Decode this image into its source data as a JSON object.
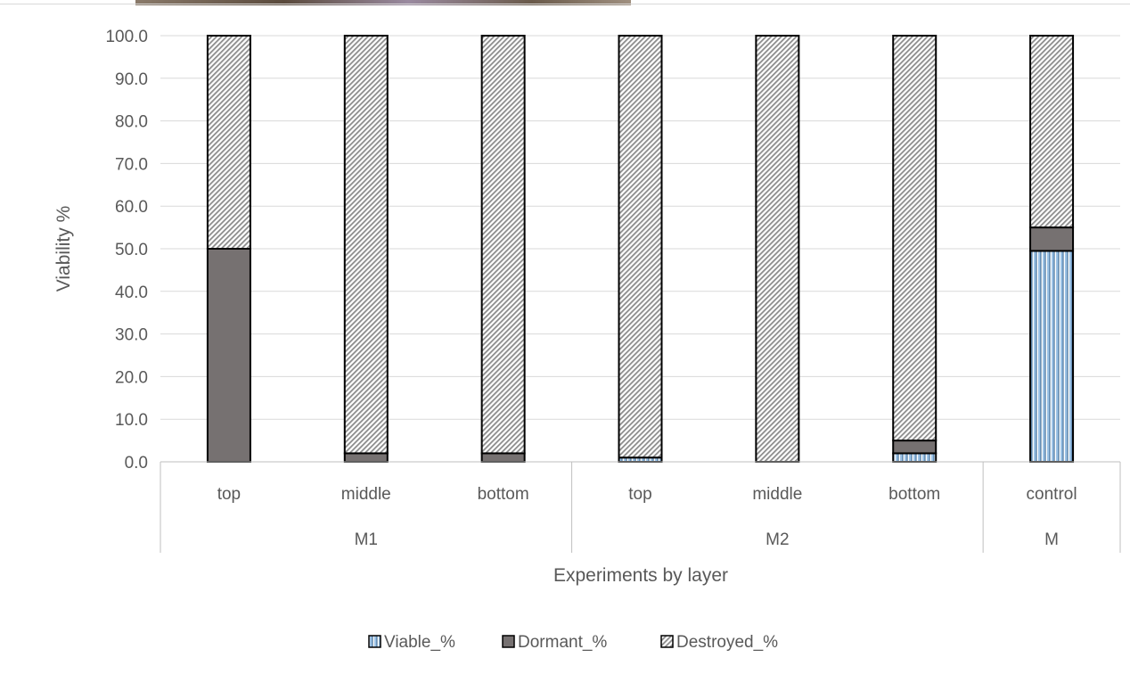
{
  "chart_data": {
    "type": "bar",
    "stacked": true,
    "groups": [
      {
        "label": "M1",
        "categories": [
          "top",
          "middle",
          "bottom"
        ]
      },
      {
        "label": "M2",
        "categories": [
          "top",
          "middle",
          "bottom"
        ]
      },
      {
        "label": "M",
        "categories": [
          "control"
        ]
      }
    ],
    "categories": [
      "top",
      "middle",
      "bottom",
      "top",
      "middle",
      "bottom",
      "control"
    ],
    "series": [
      {
        "name": "Viable_%",
        "values": [
          0.0,
          0.0,
          0.0,
          1.0,
          0.0,
          2.0,
          49.5
        ],
        "pattern": "vertical-stripes",
        "color": "#9dc3e6"
      },
      {
        "name": "Dormant_%",
        "values": [
          50.0,
          2.0,
          2.0,
          0.0,
          0.0,
          3.0,
          5.5
        ],
        "pattern": "solid",
        "color": "#767171"
      },
      {
        "name": "Destroyed_%",
        "values": [
          50.0,
          98.0,
          98.0,
          99.0,
          100.0,
          95.0,
          45.0
        ],
        "pattern": "diagonal-hatch",
        "color": "#a6a6a6"
      }
    ],
    "title": "",
    "xlabel": "Experiments by layer",
    "ylabel": "Viability %",
    "ylim": [
      0,
      100
    ],
    "yticks": [
      "0.0",
      "10.0",
      "20.0",
      "30.0",
      "40.0",
      "50.0",
      "60.0",
      "70.0",
      "80.0",
      "90.0",
      "100.0"
    ],
    "grid": true,
    "legend_position": "bottom"
  }
}
